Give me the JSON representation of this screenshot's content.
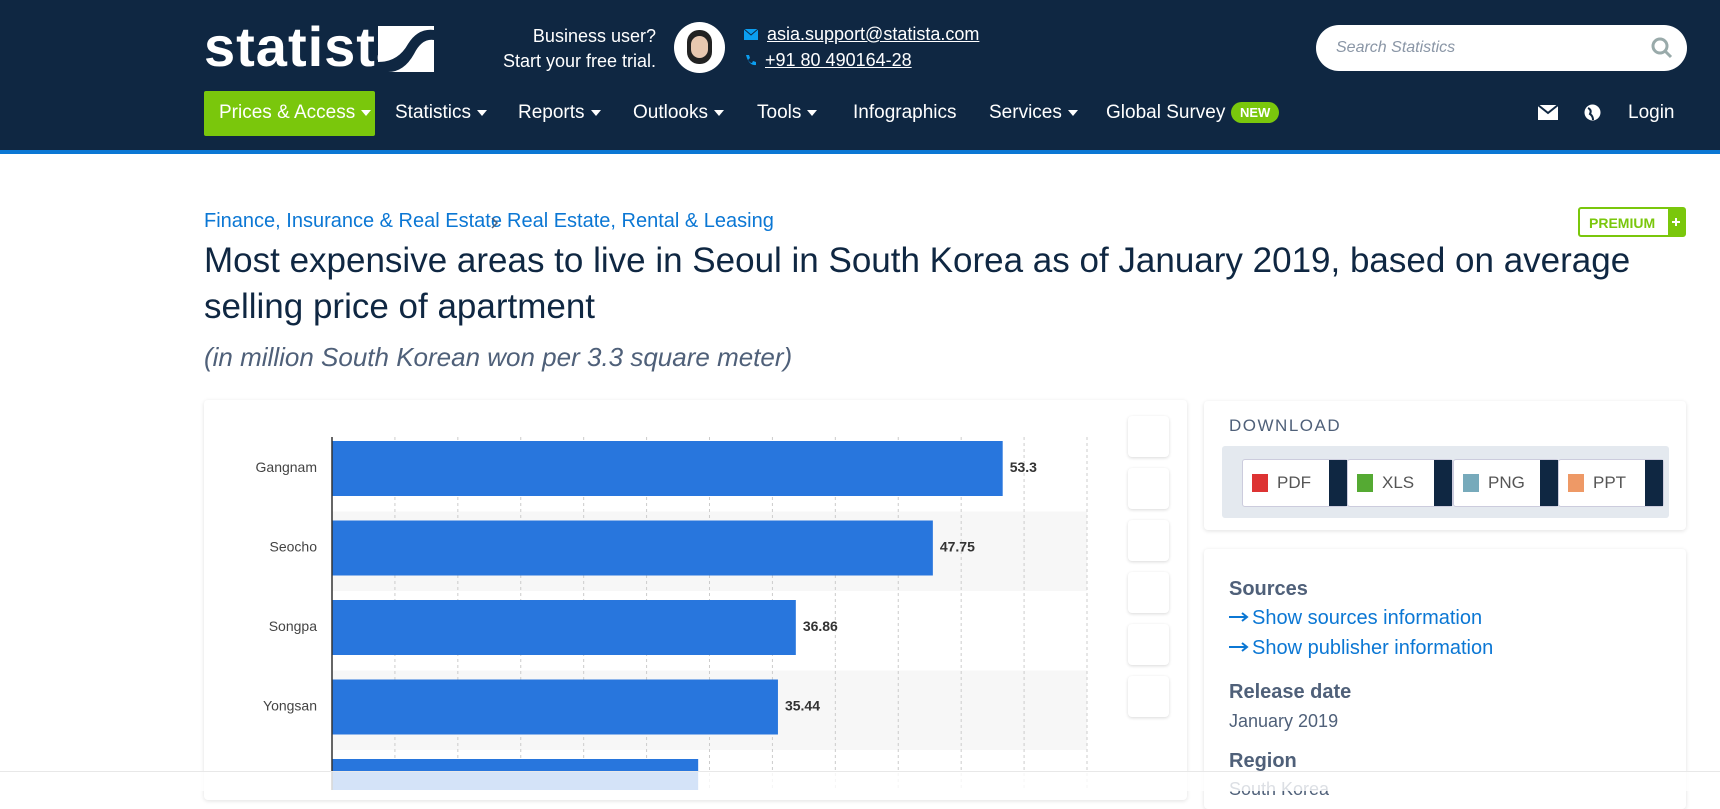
{
  "header": {
    "logo": "statista",
    "business": "Business user?",
    "trial": "Start your free trial.",
    "email": "asia.support@statista.com",
    "phone": "+91 80 490164-28",
    "search_placeholder": "Search Statistics",
    "nav": [
      "Prices & Access",
      "Statistics",
      "Reports",
      "Outlooks",
      "Tools",
      "Infographics",
      "Services",
      "Global Survey"
    ],
    "new_badge": "NEW",
    "login": "Login"
  },
  "breadcrumb": [
    "Finance, Insurance & Real Estate",
    "Real Estate, Rental & Leasing"
  ],
  "premium": "PREMIUM",
  "title": "Most expensive areas to live in Seoul in South Korea as of January 2019, based on average selling price of apartment",
  "subtitle": "(in million South Korean won per 3.3 square meter)",
  "chart_data": {
    "type": "hbar",
    "categories": [
      "Gangnam",
      "Seocho",
      "Songpa",
      "Yongsan",
      null
    ],
    "values": [
      53.3,
      47.75,
      36.86,
      35.44,
      29.1
    ],
    "color": "#2876dd",
    "xlim": [
      0,
      60
    ],
    "xticks": [
      0,
      5,
      10,
      15,
      20,
      25,
      30,
      35,
      40,
      45,
      50,
      55,
      60
    ],
    "grid": true
  },
  "download": {
    "heading": "DOWNLOAD",
    "formats": [
      "PDF",
      "XLS",
      "PNG",
      "PPT"
    ]
  },
  "sources": {
    "heading": "Sources",
    "links": [
      "Show sources information",
      "Show publisher information"
    ]
  },
  "release": {
    "heading": "Release date",
    "value": "January 2019"
  },
  "region": {
    "heading": "Region",
    "value": "South Korea"
  }
}
